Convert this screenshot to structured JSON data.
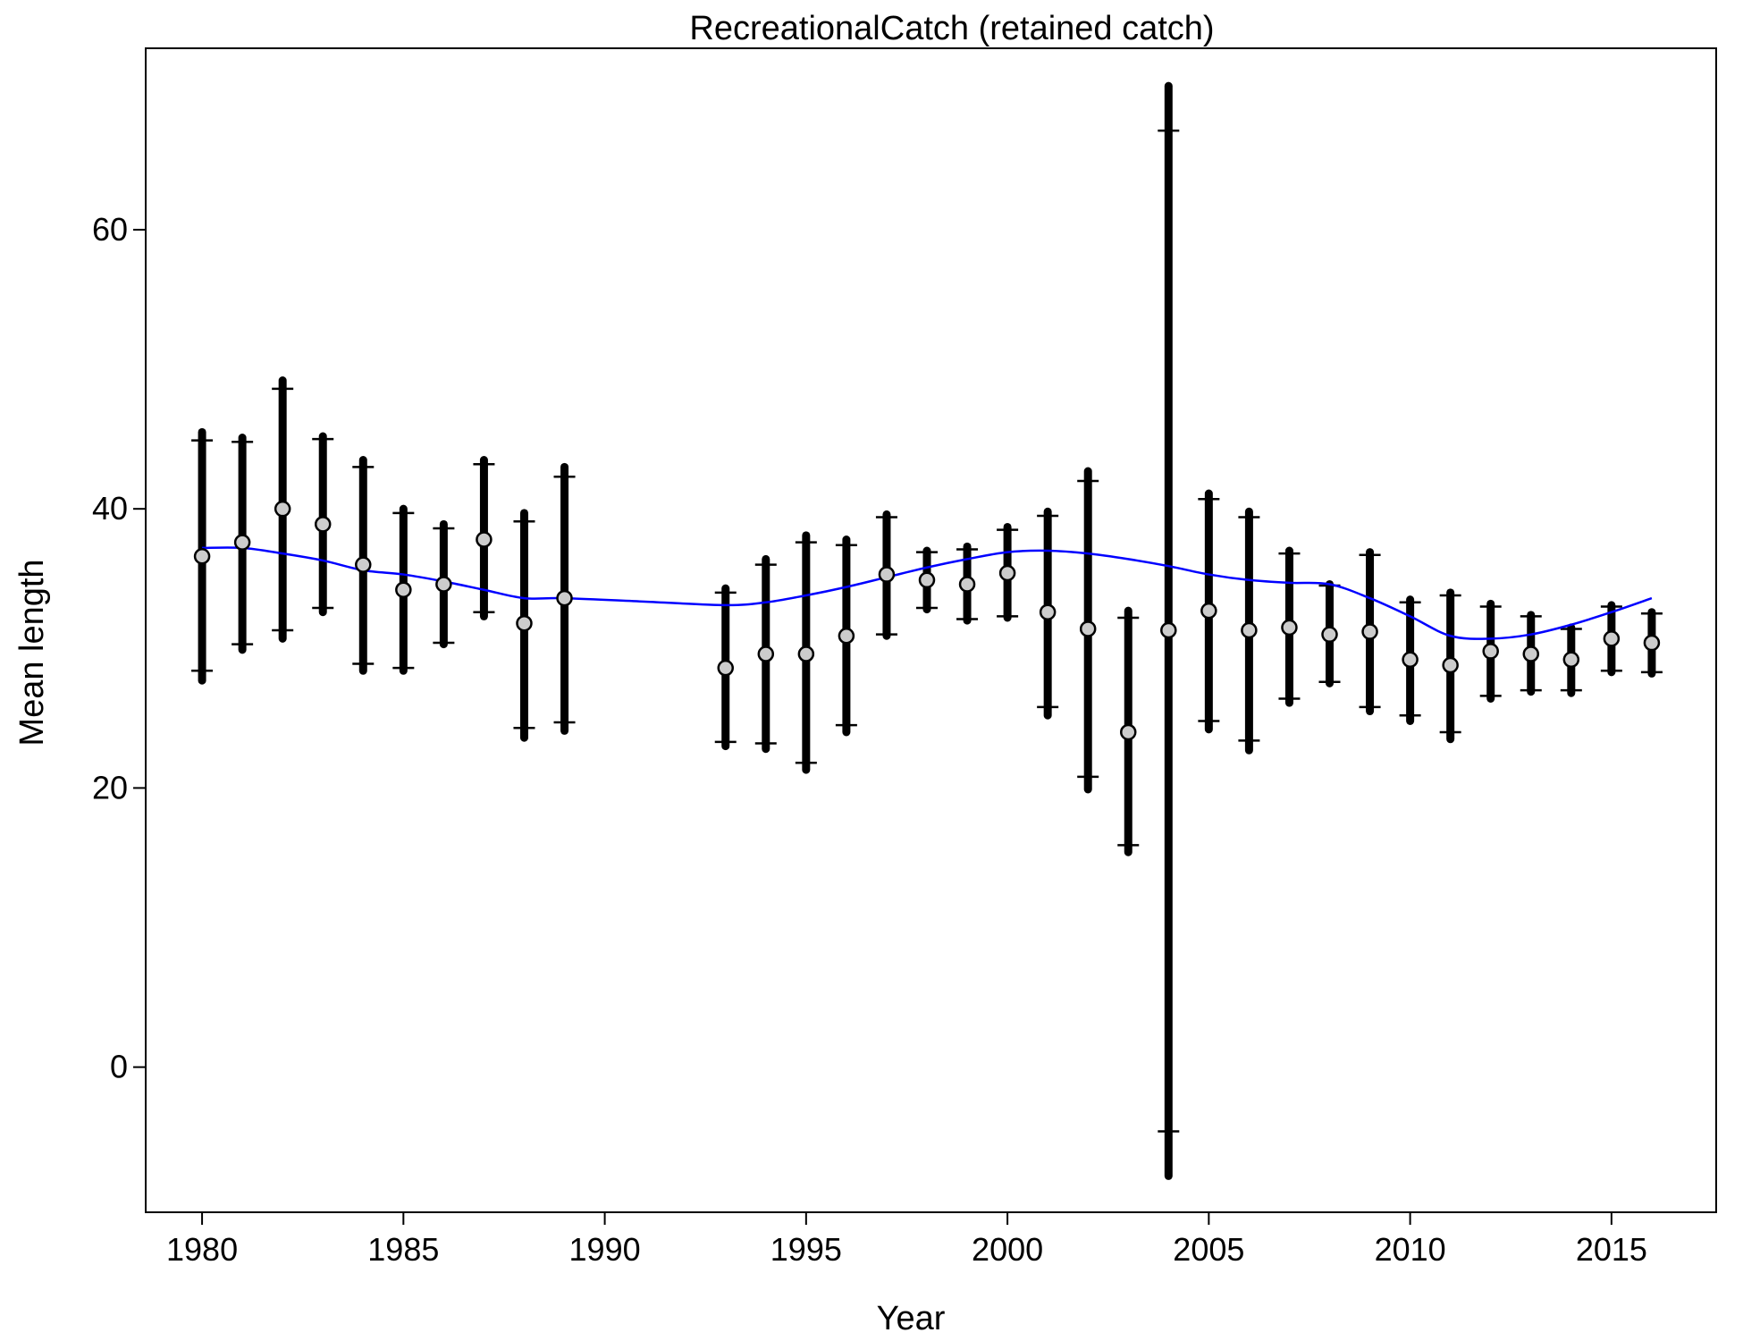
{
  "chart_data": {
    "type": "scatter",
    "title": "RecreationalCatch (retained catch)",
    "xlabel": "Year",
    "ylabel": "Mean length",
    "xlim": [
      1978.6,
      2017.6
    ],
    "ylim": [
      -10.4,
      73
    ],
    "xticks": [
      "1980",
      "1985",
      "1990",
      "1995",
      "2000",
      "2005",
      "2010",
      "2015"
    ],
    "yticks": [
      "0",
      "20",
      "40",
      "60"
    ],
    "grid": false,
    "legend": "none",
    "colors": {
      "observed_point": "#cccccc",
      "error_bar": "#000000",
      "fit_line": "#0000ff"
    },
    "observed": {
      "x": [
        1980,
        1981,
        1982,
        1983,
        1984,
        1985,
        1986,
        1987,
        1988,
        1989,
        1993,
        1994,
        1995,
        1996,
        1997,
        1998,
        1999,
        2000,
        2001,
        2002,
        2003,
        2004,
        2005,
        2006,
        2007,
        2008,
        2009,
        2010,
        2011,
        2012,
        2013,
        2014,
        2015,
        2016
      ],
      "y": [
        36.6,
        37.6,
        40.0,
        38.9,
        36.0,
        34.2,
        34.6,
        37.8,
        31.8,
        33.6,
        28.6,
        29.6,
        29.6,
        30.9,
        35.3,
        34.9,
        34.6,
        35.4,
        32.6,
        31.4,
        24.0,
        31.3,
        32.7,
        31.3,
        31.5,
        31.0,
        31.2,
        29.2,
        28.8,
        29.8,
        29.6,
        29.2,
        30.7,
        30.4
      ],
      "lower_thick": [
        27.7,
        29.9,
        30.7,
        32.6,
        28.4,
        28.4,
        30.3,
        32.3,
        23.6,
        24.1,
        23.0,
        22.8,
        21.3,
        24.0,
        30.9,
        32.8,
        32.0,
        32.2,
        25.2,
        19.9,
        15.4,
        -7.8,
        24.2,
        22.7,
        26.1,
        27.5,
        25.5,
        24.8,
        23.5,
        26.4,
        26.9,
        26.8,
        28.3,
        28.2
      ],
      "upper_thick": [
        45.5,
        45.1,
        49.2,
        45.2,
        43.5,
        40.0,
        38.9,
        43.5,
        39.7,
        43.0,
        34.3,
        36.4,
        38.1,
        37.8,
        39.6,
        37.0,
        37.3,
        38.7,
        39.8,
        42.7,
        32.7,
        70.3,
        41.1,
        39.8,
        37.0,
        34.6,
        36.9,
        33.5,
        34.0,
        33.2,
        32.4,
        31.5,
        33.1,
        32.6
      ],
      "lower_cap": [
        28.4,
        30.3,
        31.3,
        32.9,
        28.9,
        28.6,
        30.4,
        32.6,
        24.3,
        24.7,
        23.3,
        23.2,
        21.8,
        24.5,
        31.0,
        32.9,
        32.1,
        32.3,
        25.8,
        20.8,
        15.9,
        -4.6,
        24.8,
        23.4,
        26.4,
        27.6,
        25.8,
        25.2,
        24.0,
        26.6,
        27.0,
        27.0,
        28.4,
        28.3
      ],
      "upper_cap": [
        44.9,
        44.8,
        48.6,
        45.0,
        43.0,
        39.7,
        38.6,
        43.2,
        39.1,
        42.3,
        34.0,
        36.0,
        37.6,
        37.4,
        39.4,
        36.9,
        37.1,
        38.5,
        39.5,
        42.0,
        32.2,
        67.1,
        40.7,
        39.4,
        36.8,
        34.5,
        36.7,
        33.3,
        33.8,
        33.0,
        32.3,
        31.4,
        33.0,
        32.5
      ]
    },
    "expected": {
      "x": [
        1980,
        1981,
        1982,
        1983,
        1984,
        1985,
        1986,
        1987,
        1988,
        1989,
        1993,
        1994,
        1995,
        1996,
        1997,
        1998,
        1999,
        2000,
        2001,
        2002,
        2003,
        2004,
        2005,
        2006,
        2007,
        2008,
        2009,
        2010,
        2011,
        2012,
        2013,
        2014,
        2015,
        2016
      ],
      "y": [
        37.2,
        37.2,
        36.8,
        36.3,
        35.6,
        35.3,
        34.8,
        34.2,
        33.6,
        33.6,
        33.1,
        33.3,
        33.8,
        34.4,
        35.1,
        35.8,
        36.4,
        36.9,
        37.0,
        36.8,
        36.4,
        35.9,
        35.3,
        34.9,
        34.7,
        34.6,
        33.6,
        32.3,
        30.9,
        30.7,
        31.0,
        31.7,
        32.6,
        33.6
      ]
    }
  }
}
